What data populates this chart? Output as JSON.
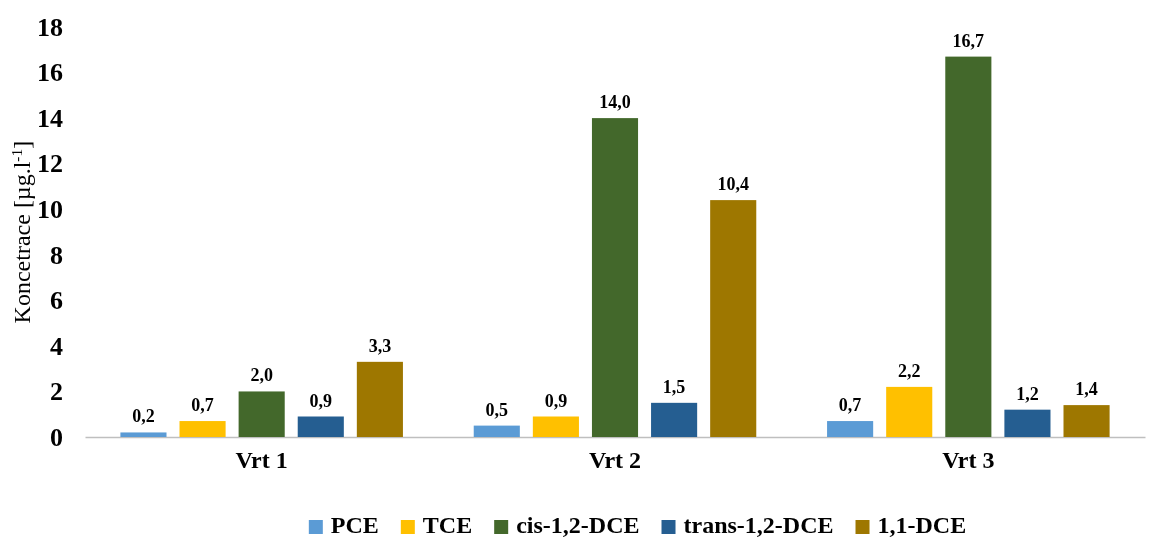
{
  "chart_data": {
    "type": "bar",
    "ylabel": "Koncetrace [µg.l$^{-1}$]",
    "categories": [
      "Vrt 1",
      "Vrt 2",
      "Vrt 3"
    ],
    "ylim": [
      0,
      18
    ],
    "yticks": [
      0,
      2,
      4,
      6,
      8,
      10,
      12,
      14,
      16,
      18
    ],
    "grid": false,
    "legend": "bottom",
    "series": [
      {
        "name": "PCE",
        "color": "#5b9bd5",
        "values": [
          0.2,
          0.5,
          0.7
        ],
        "value_labels": [
          "0,2",
          "0,5",
          "0,7"
        ]
      },
      {
        "name": "TCE",
        "color": "#ffc000",
        "values": [
          0.7,
          0.9,
          2.2
        ],
        "value_labels": [
          "0,7",
          "0,9",
          "2,2"
        ]
      },
      {
        "name": "cis-1,2-DCE",
        "color": "#43682b",
        "values": [
          2.0,
          14.0,
          16.7
        ],
        "value_labels": [
          "2,0",
          "14,0",
          "16,7"
        ]
      },
      {
        "name": "trans-1,2-DCE",
        "color": "#255e91",
        "values": [
          0.9,
          1.5,
          1.2
        ],
        "value_labels": [
          "0,9",
          "1,5",
          "1,2"
        ]
      },
      {
        "name": "1,1-DCE",
        "color": "#9e7700",
        "values": [
          3.3,
          10.4,
          1.4
        ],
        "value_labels": [
          "3,3",
          "10,4",
          "1,4"
        ]
      }
    ]
  }
}
